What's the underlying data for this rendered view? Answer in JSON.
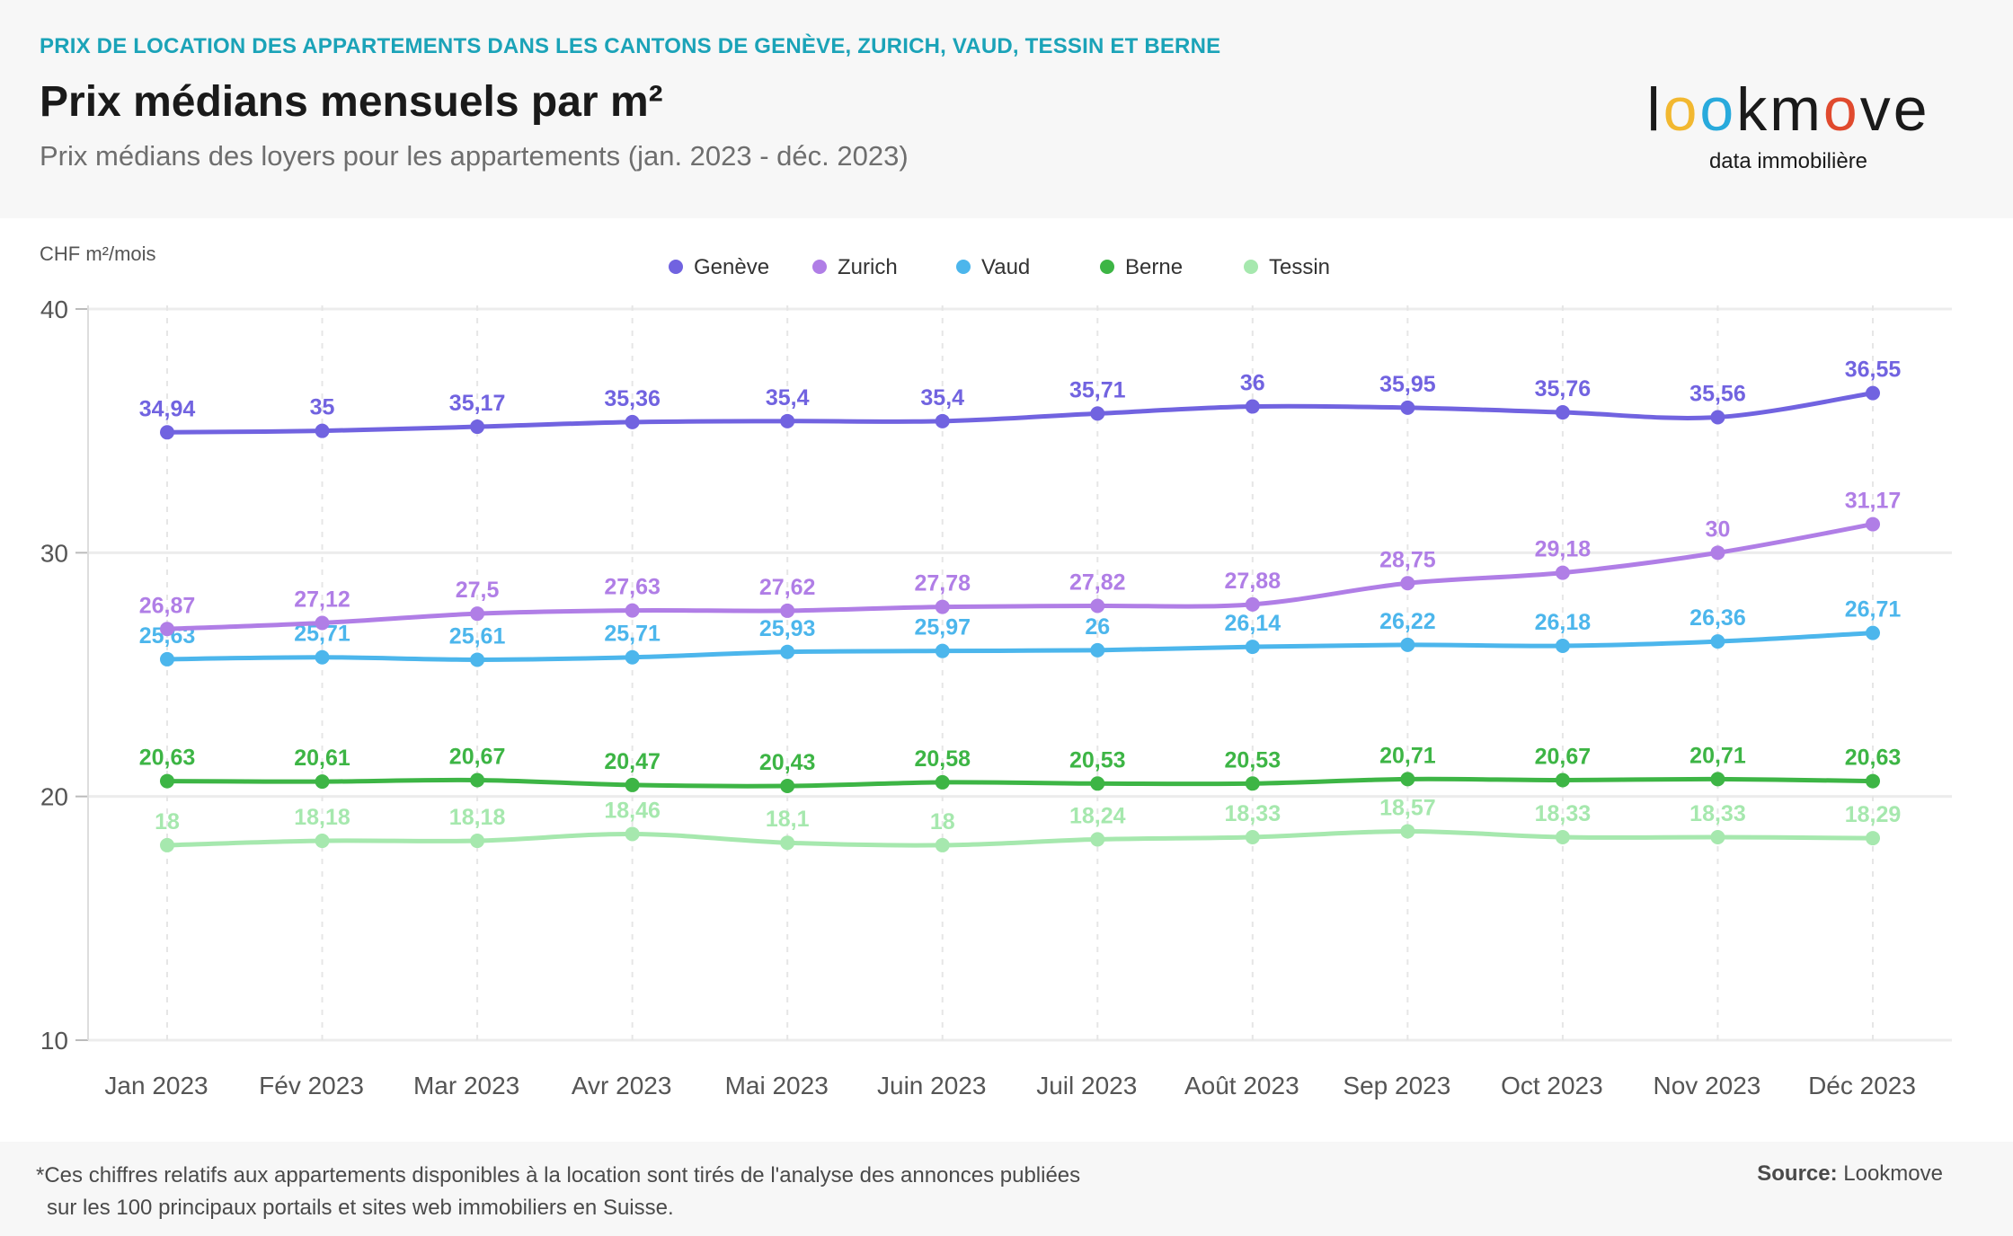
{
  "header": {
    "kicker": "PRIX DE LOCATION DES APPARTEMENTS DANS LES CANTONS DE GENÈVE, ZURICH, VAUD, TESSIN ET BERNE",
    "title": "Prix médians mensuels par m²",
    "subtitle": "Prix médians des loyers pour les appartements (jan. 2023 - déc. 2023)"
  },
  "logo": {
    "letters": [
      "l",
      "o",
      "o",
      "k",
      "m",
      "o",
      "v",
      "e"
    ],
    "letter_colors": [
      "#1a1a1a",
      "#f2b830",
      "#28aadc",
      "#1a1a1a",
      "#1a1a1a",
      "#e04a2e",
      "#1a1a1a",
      "#1a1a1a"
    ],
    "tagline": "data immobilière"
  },
  "footer": {
    "note_line1": "*Ces chiffres relatifs aux appartements disponibles à la location sont tirés de l'analyse des annonces publiées",
    "note_line2": "sur les 100 principaux portails et sites web immobiliers en Suisse.",
    "source_label": "Source:",
    "source_value": "Lookmove"
  },
  "chart_data": {
    "type": "line",
    "ylabel": "CHF m²/mois",
    "ylim": [
      10,
      40
    ],
    "yticks": [
      10,
      20,
      30,
      40
    ],
    "grid": true,
    "legend_position": "top-center",
    "categories": [
      "Jan 2023",
      "Fév 2023",
      "Mar 2023",
      "Avr 2023",
      "Mai 2023",
      "Juin 2023",
      "Juil 2023",
      "Août 2023",
      "Sep 2023",
      "Oct 2023",
      "Nov 2023",
      "Déc 2023"
    ],
    "series": [
      {
        "name": "Genève",
        "color": "#7163e0",
        "values": [
          34.94,
          35,
          35.17,
          35.36,
          35.4,
          35.4,
          35.71,
          36,
          35.95,
          35.76,
          35.56,
          36.55
        ],
        "labels": [
          "34,94",
          "35",
          "35,17",
          "35,36",
          "35,4",
          "35,4",
          "35,71",
          "36",
          "35,95",
          "35,76",
          "35,56",
          "36,55"
        ]
      },
      {
        "name": "Zurich",
        "color": "#b07ee6",
        "values": [
          26.87,
          27.12,
          27.5,
          27.63,
          27.62,
          27.78,
          27.82,
          27.88,
          28.75,
          29.18,
          30,
          31.17
        ],
        "labels": [
          "26,87",
          "27,12",
          "27,5",
          "27,63",
          "27,62",
          "27,78",
          "27,82",
          "27,88",
          "28,75",
          "29,18",
          "30",
          "31,17"
        ]
      },
      {
        "name": "Vaud",
        "color": "#4cb6ec",
        "values": [
          25.63,
          25.71,
          25.61,
          25.71,
          25.93,
          25.97,
          26,
          26.14,
          26.22,
          26.18,
          26.36,
          26.71
        ],
        "labels": [
          "25,63",
          "25,71",
          "25,61",
          "25,71",
          "25,93",
          "25,97",
          "26",
          "26,14",
          "26,22",
          "26,18",
          "26,36",
          "26,71"
        ]
      },
      {
        "name": "Berne",
        "color": "#3db545",
        "values": [
          20.63,
          20.61,
          20.67,
          20.47,
          20.43,
          20.58,
          20.53,
          20.53,
          20.71,
          20.67,
          20.71,
          20.63
        ],
        "labels": [
          "20,63",
          "20,61",
          "20,67",
          "20,47",
          "20,43",
          "20,58",
          "20,53",
          "20,53",
          "20,71",
          "20,67",
          "20,71",
          "20,63"
        ]
      },
      {
        "name": "Tessin",
        "color": "#a6e8ae",
        "values": [
          18,
          18.18,
          18.18,
          18.46,
          18.1,
          18,
          18.24,
          18.33,
          18.57,
          18.33,
          18.33,
          18.29
        ],
        "labels": [
          "18",
          "18,18",
          "18,18",
          "18,46",
          "18,1",
          "18",
          "18,24",
          "18,33",
          "18,57",
          "18,33",
          "18,33",
          "18,29"
        ]
      }
    ]
  }
}
